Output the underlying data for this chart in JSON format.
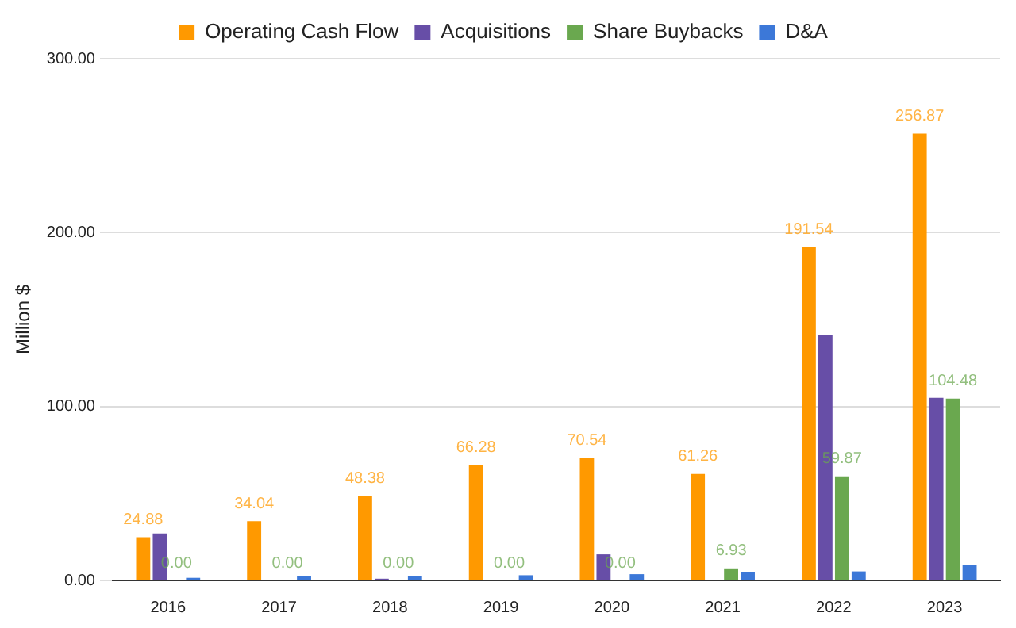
{
  "chart_data": {
    "type": "bar",
    "ylabel": "Million $",
    "categories": [
      "2016",
      "2017",
      "2018",
      "2019",
      "2020",
      "2021",
      "2022",
      "2023"
    ],
    "series": [
      {
        "name": "Operating Cash Flow",
        "color": "#ff9900",
        "values": [
          24.88,
          34.04,
          48.38,
          66.28,
          70.54,
          61.26,
          191.54,
          256.87
        ],
        "value_labels": [
          "24.88",
          "34.04",
          "48.38",
          "66.28",
          "70.54",
          "61.26",
          "191.54",
          "256.87"
        ]
      },
      {
        "name": "Acquisitions",
        "color": "#674ea7",
        "values": [
          27,
          0,
          1,
          0,
          15,
          0,
          141,
          105
        ]
      },
      {
        "name": "Share Buybacks",
        "color": "#6aa84f",
        "values": [
          0,
          0,
          0,
          0,
          0,
          6.93,
          59.87,
          104.48
        ],
        "value_labels": [
          "0.00",
          "0.00",
          "0.00",
          "0.00",
          "0.00",
          "6.93",
          "59.87",
          "104.48"
        ]
      },
      {
        "name": "D&A",
        "color": "#3c78d8",
        "values": [
          1.5,
          2.5,
          2.5,
          3,
          3.6,
          4.6,
          5.2,
          8.7
        ]
      }
    ],
    "ylim": [
      0,
      300
    ],
    "yticks": [
      {
        "value": 0,
        "label": "0.00"
      },
      {
        "value": 100,
        "label": "100.00"
      },
      {
        "value": 200,
        "label": "200.00"
      },
      {
        "value": 300,
        "label": "300.00"
      }
    ],
    "grid": "y",
    "legend": "top"
  }
}
